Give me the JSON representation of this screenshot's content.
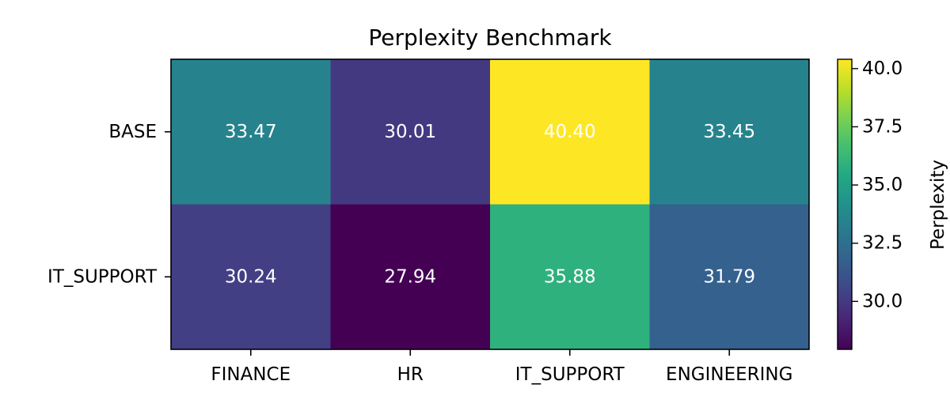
{
  "chart_data": {
    "type": "heatmap",
    "title": "Perplexity Benchmark",
    "rows": [
      "BASE",
      "IT_SUPPORT"
    ],
    "columns": [
      "FINANCE",
      "HR",
      "IT_SUPPORT",
      "ENGINEERING"
    ],
    "values": [
      [
        33.47,
        30.01,
        40.4,
        33.45
      ],
      [
        30.24,
        27.94,
        35.88,
        31.79
      ]
    ],
    "value_labels": [
      [
        "33.47",
        "30.01",
        "40.40",
        "33.45"
      ],
      [
        "30.24",
        "27.94",
        "35.88",
        "31.79"
      ]
    ],
    "colormap": "viridis",
    "color_range": [
      27.94,
      40.4
    ],
    "colorbar": {
      "label": "Perplexity",
      "ticks": [
        30.0,
        32.5,
        35.0,
        37.5,
        40.0
      ],
      "tick_labels": [
        "30.0",
        "32.5",
        "35.0",
        "37.5",
        "40.0"
      ]
    },
    "cell_label_color": "#ffffff"
  }
}
